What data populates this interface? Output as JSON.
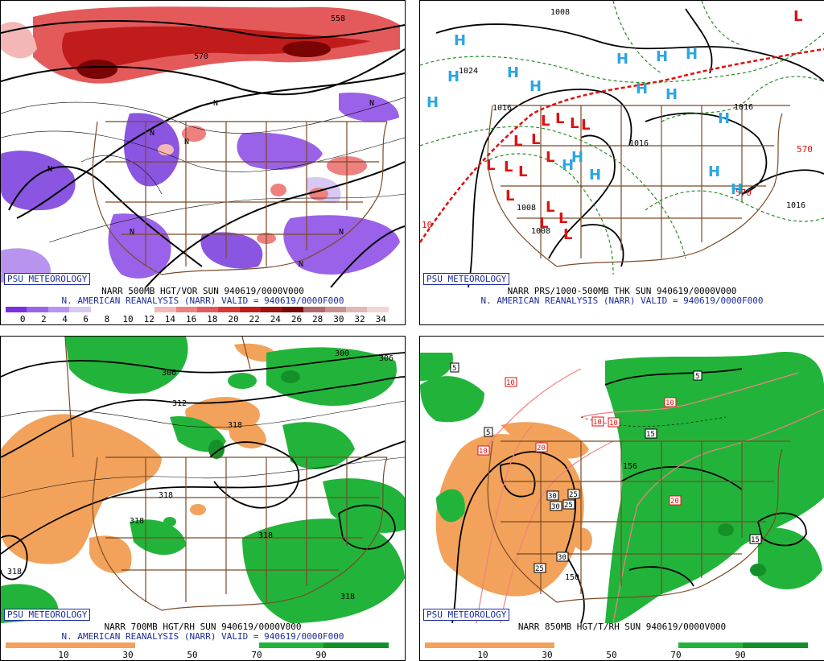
{
  "panels": [
    {
      "id": "tl",
      "badge": "PSU METEOROLOGY",
      "title_line1": "NARR 500MB HGT/VOR SUN 940619/0000V000",
      "title_line2": "N. AMERICAN REANALYSIS (NARR) VALID = 940619/0000F000",
      "colorbar_labels": [
        "0",
        "2",
        "4",
        "6",
        "8",
        "10",
        "12",
        "14",
        "16",
        "18",
        "20",
        "22",
        "24",
        "26",
        "28",
        "30",
        "32",
        "34"
      ],
      "colorbar_colors": [
        "#7b2fe0",
        "#9a62e8",
        "#b894ee",
        "#d8c8f4",
        "#ffffff",
        "#ffffff",
        "#ffffff",
        "#f4b7b7",
        "#ee8080",
        "#e45a5a",
        "#d83636",
        "#c01c1c",
        "#a00e0e",
        "#7a0404",
        "#b06a6a",
        "#c99090",
        "#e0b8b8",
        "#f2d4d4"
      ],
      "contour_labels": [
        "558",
        "570",
        "N",
        "N",
        "N",
        "N",
        "N",
        "N",
        "N",
        "N"
      ]
    },
    {
      "id": "tr",
      "badge": "PSU METEOROLOGY",
      "title_line1": "NARR PRS/1000-500MB THK SUN 940619/0000V000",
      "title_line2": "N. AMERICAN REANALYSIS (NARR) VALID = 940619/0000F000",
      "contour_labels": [
        "1008",
        "1024",
        "1016",
        "1016",
        "1016",
        "1016",
        "1008",
        "1008",
        "570",
        "570",
        "10"
      ],
      "highs": [
        "H",
        "H",
        "H",
        "H",
        "H",
        "H",
        "H",
        "H",
        "H",
        "H",
        "H",
        "H",
        "H",
        "H",
        "H",
        "H"
      ],
      "lows": [
        "L",
        "L",
        "L",
        "L",
        "L",
        "L",
        "L",
        "L",
        "L",
        "L",
        "L",
        "L",
        "L",
        "L",
        "L",
        "L"
      ]
    },
    {
      "id": "bl",
      "badge": "PSU METEOROLOGY",
      "title_line1": "NARR 700MB HGT/RH SUN 940619/0000V000",
      "title_line2": "N. AMERICAN REANALYSIS (NARR) VALID = 940619/0000F000",
      "colorbar_labels": [
        "10",
        "30",
        "50",
        "70",
        "90"
      ],
      "contour_labels": [
        "306",
        "312",
        "300",
        "306",
        "318",
        "318",
        "318",
        "318",
        "318",
        "318"
      ]
    },
    {
      "id": "br",
      "badge": "PSU METEOROLOGY",
      "title_line1": "NARR 850MB HGT/T/RH SUN 940619/0000V000",
      "colorbar_labels": [
        "10",
        "30",
        "50",
        "70",
        "90"
      ],
      "contour_labels": [
        "5",
        "5",
        "5",
        "10",
        "10",
        "10",
        "10",
        "10",
        "15",
        "15",
        "20",
        "20",
        "25",
        "25",
        "25",
        "30",
        "30",
        "30",
        "156",
        "150"
      ]
    }
  ],
  "colors": {
    "border": "#7a4a28",
    "vort_pos": "#d83636",
    "vort_neg": "#8a55e0",
    "rh_moist": "#22b43a",
    "rh_dry": "#f2a25a",
    "high": "#2aa6e4",
    "low": "#e01010",
    "thickness": "#e01010",
    "temp": "#f08080",
    "dashed_green": "#2a8a2a",
    "badge": "#1c2c9c"
  }
}
